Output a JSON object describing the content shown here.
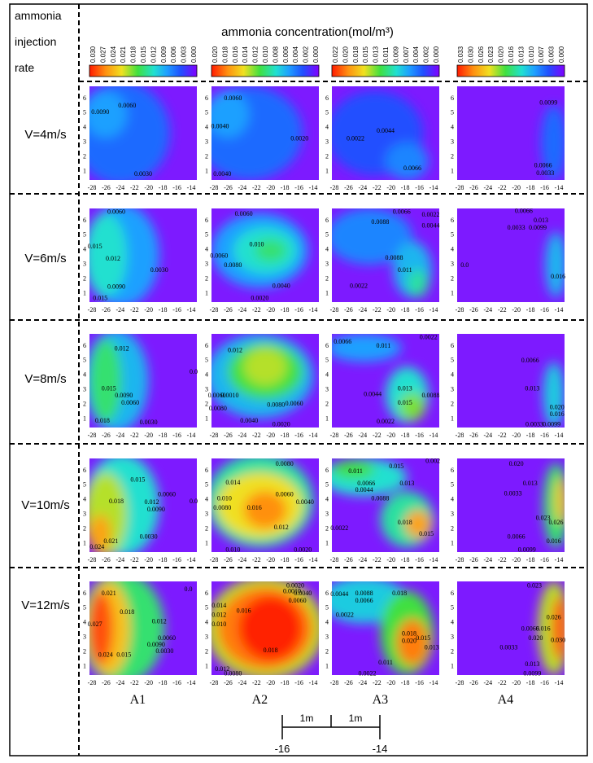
{
  "header": {
    "row_label": [
      "ammonia",
      "injection",
      "rate"
    ],
    "title": "ammonia concentration(mol/m³)"
  },
  "colorbars": [
    {
      "ticks": [
        "0.030",
        "0.027",
        "0.024",
        "0.021",
        "0.018",
        "0.015",
        "0.012",
        "0.009",
        "0.006",
        "0.003",
        "0.000"
      ]
    },
    {
      "ticks": [
        "0.020",
        "0.018",
        "0.016",
        "0.014",
        "0.012",
        "0.010",
        "0.008",
        "0.006",
        "0.004",
        "0.002",
        "0.000"
      ]
    },
    {
      "ticks": [
        "0.022",
        "0.020",
        "0.018",
        "0.015",
        "0.013",
        "0.011",
        "0.009",
        "0.007",
        "0.004",
        "0.002",
        "0.000"
      ]
    },
    {
      "ticks": [
        "0.033",
        "0.030",
        "0.026",
        "0.023",
        "0.020",
        "0.016",
        "0.013",
        "0.010",
        "0.007",
        "0.003",
        "0.000"
      ]
    }
  ],
  "axes": {
    "xticks": [
      -28,
      -26,
      -24,
      -22,
      -20,
      -18,
      -16,
      -14
    ],
    "yticks": [
      1,
      2,
      3,
      4,
      5,
      6
    ]
  },
  "rows": [
    {
      "label": "V=4m/s",
      "panels": [
        {
          "labels": [
            "0.0060",
            "0.0090",
            "0.0030"
          ]
        },
        {
          "labels": [
            "0.0060",
            "0.0040",
            "0.0020",
            "0.0040"
          ]
        },
        {
          "labels": [
            "0.0044",
            "0.0022",
            "0.0066"
          ]
        },
        {
          "labels": [
            "0.0099",
            "0.0066",
            "0.0033"
          ]
        }
      ]
    },
    {
      "label": "V=6m/s",
      "panels": [
        {
          "labels": [
            "0.0060",
            "0.015",
            "0.012",
            "0.0030",
            "0.0090",
            "0.015"
          ]
        },
        {
          "labels": [
            "0.0060",
            "0.010",
            "0.0060",
            "0.0080",
            "0.0040",
            "0.0020"
          ]
        },
        {
          "labels": [
            "0.0066",
            "0.0022",
            "0.0088",
            "0.0044",
            "0.0088",
            "0.011",
            "0.0022"
          ]
        },
        {
          "labels": [
            "0.0066",
            "0.013",
            "0.0033",
            "0.0099",
            "0.0",
            "0.016"
          ]
        }
      ]
    },
    {
      "label": "V=8m/s",
      "panels": [
        {
          "labels": [
            "0.012",
            "0.0",
            "0.015",
            "0.0090",
            "0.0060",
            "0.018",
            "0.0030"
          ]
        },
        {
          "labels": [
            "0.012",
            "0.0060",
            "0.0010",
            "0.0080",
            "0.0080",
            "0.0060",
            "0.0040",
            "0.0020"
          ]
        },
        {
          "labels": [
            "0.0022",
            "0.0066",
            "0.011",
            "0.013",
            "0.0044",
            "0.0088",
            "0.015",
            "0.0022"
          ]
        },
        {
          "labels": [
            "0.0066",
            "0.013",
            "0.020",
            "0.016",
            "0.0033",
            "0.0099"
          ]
        }
      ]
    },
    {
      "label": "V=10m/s",
      "panels": [
        {
          "labels": [
            "0.015",
            "0.0060",
            "0.0",
            "0.018",
            "0.012",
            "0.0090",
            "0.021",
            "0.0030",
            "0.024"
          ]
        },
        {
          "labels": [
            "0.0080",
            "0.014",
            "0.0060",
            "0.010",
            "0.0040",
            "0.0080",
            "0.016",
            "0.012",
            "0.010",
            "0.0020"
          ]
        },
        {
          "labels": [
            "0.002",
            "0.015",
            "0.011",
            "0.0066",
            "0.013",
            "0.0044",
            "0.0088",
            "0.018",
            "0.0022",
            "0.015"
          ]
        },
        {
          "labels": [
            "0.020",
            "0.013",
            "0.0033",
            "0.023",
            "0.026",
            "0.0066",
            "0.016",
            "0.0099"
          ]
        }
      ]
    },
    {
      "label": "V=12m/s",
      "panels": [
        {
          "labels": [
            "0.0",
            "0.021",
            "0.018",
            "0.012",
            "0.027",
            "0.0060",
            "0.0090",
            "0.0030",
            "0.024",
            "0.015"
          ]
        },
        {
          "labels": [
            "0.0020",
            "0.0010",
            "0.0040",
            "0.0060",
            "0.014",
            "0.016",
            "0.012",
            "0.010",
            "0.018",
            "0.012",
            "0.0080"
          ]
        },
        {
          "labels": [
            "0.0044",
            "0.0088",
            "0.018",
            "0.0066",
            "0.0022",
            "0.018",
            "0.020",
            "0.015",
            "0.013",
            "0.011",
            "0.0022"
          ]
        },
        {
          "labels": [
            "0.023",
            "0.026",
            "0.0066",
            "0.016",
            "0.020",
            "0.030",
            "0.0033",
            "0.013",
            "0.0099"
          ]
        }
      ]
    }
  ],
  "columns": [
    "A1",
    "A2",
    "A3",
    "A4"
  ],
  "scale_bar": {
    "length_labels": [
      "1m",
      "1m"
    ],
    "ticks": [
      -16,
      -14
    ]
  }
}
